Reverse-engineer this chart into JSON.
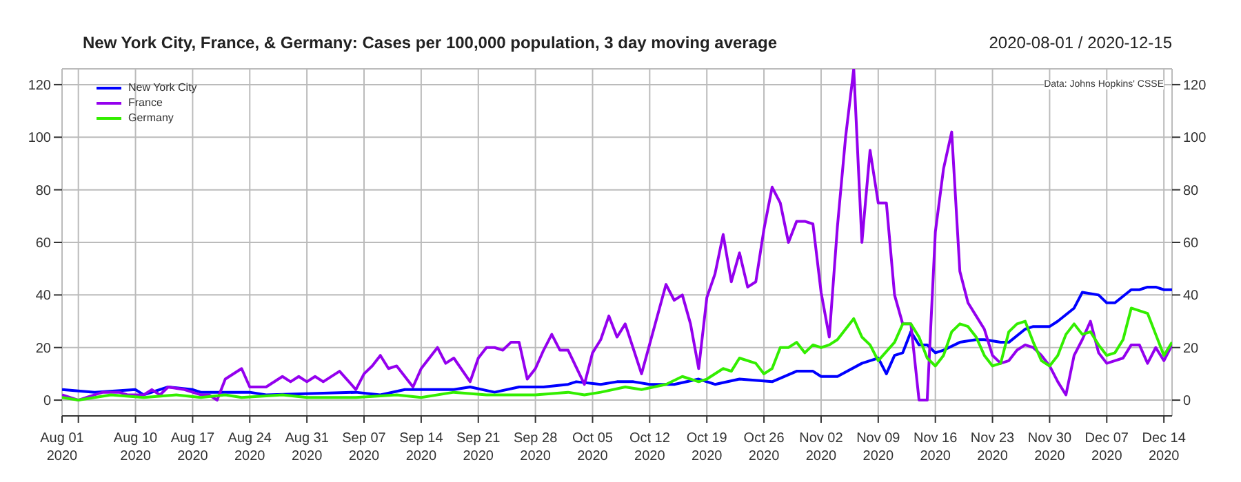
{
  "chart_data": {
    "type": "line",
    "title": "New York City, France, & Germany: Cases per 100,000 population, 3 day moving average",
    "subtitle": "2020-08-01 / 2020-12-15",
    "annotations": [
      "Data: Johns Hopkins' CSSE"
    ],
    "xlim": [
      "2020-08-01",
      "2020-12-15"
    ],
    "xticks": [
      {
        "value": "2020-08-01",
        "label": "Aug 01\n2020"
      },
      {
        "value": "2020-08-03",
        "label": null
      },
      {
        "value": "2020-08-10",
        "label": "Aug 10\n2020"
      },
      {
        "value": "2020-08-17",
        "label": "Aug 17\n2020"
      },
      {
        "value": "2020-08-24",
        "label": "Aug 24\n2020"
      },
      {
        "value": "2020-08-31",
        "label": "Aug 31\n2020"
      },
      {
        "value": "2020-09-07",
        "label": "Sep 07\n2020"
      },
      {
        "value": "2020-09-14",
        "label": "Sep 14\n2020"
      },
      {
        "value": "2020-09-21",
        "label": "Sep 21\n2020"
      },
      {
        "value": "2020-09-28",
        "label": "Sep 28\n2020"
      },
      {
        "value": "2020-10-05",
        "label": "Oct 05\n2020"
      },
      {
        "value": "2020-10-12",
        "label": "Oct 12\n2020"
      },
      {
        "value": "2020-10-19",
        "label": "Oct 19\n2020"
      },
      {
        "value": "2020-10-26",
        "label": "Oct 26\n2020"
      },
      {
        "value": "2020-11-02",
        "label": "Nov 02\n2020"
      },
      {
        "value": "2020-11-09",
        "label": "Nov 09\n2020"
      },
      {
        "value": "2020-11-16",
        "label": "Nov 16\n2020"
      },
      {
        "value": "2020-11-23",
        "label": "Nov 23\n2020"
      },
      {
        "value": "2020-11-30",
        "label": "Nov 30\n2020"
      },
      {
        "value": "2020-12-07",
        "label": "Dec 07\n2020"
      },
      {
        "value": "2020-12-14",
        "label": "Dec 14\n2020"
      }
    ],
    "ylim": [
      -6,
      126
    ],
    "yticks": [
      0,
      20,
      40,
      60,
      80,
      100,
      120
    ],
    "y2lim": [
      -6,
      126
    ],
    "y2ticks": [
      0,
      20,
      40,
      60,
      80,
      100,
      120
    ],
    "grid": true,
    "legend": "top left",
    "series": [
      {
        "name": "New York City",
        "color": "#0000ff",
        "x": [
          "2020-08-01",
          "2020-08-05",
          "2020-08-10",
          "2020-08-11",
          "2020-08-14",
          "2020-08-17",
          "2020-08-18",
          "2020-08-24",
          "2020-08-26",
          "2020-09-06",
          "2020-09-09",
          "2020-09-12",
          "2020-09-18",
          "2020-09-20",
          "2020-09-23",
          "2020-09-26",
          "2020-09-29",
          "2020-10-02",
          "2020-10-03",
          "2020-10-06",
          "2020-10-08",
          "2020-10-10",
          "2020-10-12",
          "2020-10-15",
          "2020-10-18",
          "2020-10-20",
          "2020-10-23",
          "2020-10-27",
          "2020-10-30",
          "2020-11-01",
          "2020-11-02",
          "2020-11-04",
          "2020-11-07",
          "2020-11-09",
          "2020-11-10",
          "2020-11-11",
          "2020-11-12",
          "2020-11-13",
          "2020-11-14",
          "2020-11-15",
          "2020-11-16",
          "2020-11-17",
          "2020-11-19",
          "2020-11-21",
          "2020-11-22",
          "2020-11-24",
          "2020-11-25",
          "2020-11-27",
          "2020-11-28",
          "2020-11-30",
          "2020-12-01",
          "2020-12-03",
          "2020-12-04",
          "2020-12-06",
          "2020-12-07",
          "2020-12-08",
          "2020-12-10",
          "2020-12-11",
          "2020-12-12",
          "2020-12-13",
          "2020-12-14",
          "2020-12-15"
        ],
        "values": [
          4,
          3,
          4,
          2,
          5,
          4,
          3,
          3,
          2,
          3,
          2,
          4,
          4,
          5,
          3,
          5,
          5,
          6,
          7,
          6,
          7,
          7,
          6,
          6,
          8,
          6,
          8,
          7,
          11,
          11,
          9,
          9,
          14,
          16,
          10,
          17,
          18,
          26,
          21,
          21,
          18,
          19,
          22,
          23,
          23,
          22,
          22,
          27,
          28,
          28,
          30,
          35,
          41,
          40,
          37,
          37,
          42,
          42,
          43,
          43,
          42,
          42
        ]
      },
      {
        "name": "France",
        "color": "#9400ee",
        "x": [
          "2020-08-01",
          "2020-08-03",
          "2020-08-04",
          "2020-08-05",
          "2020-08-06",
          "2020-08-08",
          "2020-08-09",
          "2020-08-11",
          "2020-08-12",
          "2020-08-13",
          "2020-08-14",
          "2020-08-16",
          "2020-08-18",
          "2020-08-19",
          "2020-08-20",
          "2020-08-21",
          "2020-08-23",
          "2020-08-24",
          "2020-08-26",
          "2020-08-28",
          "2020-08-29",
          "2020-08-30",
          "2020-08-31",
          "2020-09-01",
          "2020-09-02",
          "2020-09-04",
          "2020-09-06",
          "2020-09-07",
          "2020-09-08",
          "2020-09-09",
          "2020-09-10",
          "2020-09-11",
          "2020-09-13",
          "2020-09-14",
          "2020-09-16",
          "2020-09-17",
          "2020-09-18",
          "2020-09-20",
          "2020-09-21",
          "2020-09-22",
          "2020-09-23",
          "2020-09-24",
          "2020-09-25",
          "2020-09-26",
          "2020-09-27",
          "2020-09-28",
          "2020-09-29",
          "2020-09-30",
          "2020-10-01",
          "2020-10-02",
          "2020-10-04",
          "2020-10-05",
          "2020-10-06",
          "2020-10-07",
          "2020-10-08",
          "2020-10-09",
          "2020-10-11",
          "2020-10-14",
          "2020-10-15",
          "2020-10-16",
          "2020-10-17",
          "2020-10-18",
          "2020-10-19",
          "2020-10-20",
          "2020-10-21",
          "2020-10-22",
          "2020-10-23",
          "2020-10-24",
          "2020-10-25",
          "2020-10-26",
          "2020-10-27",
          "2020-10-28",
          "2020-10-29",
          "2020-10-30",
          "2020-10-31",
          "2020-11-01",
          "2020-11-02",
          "2020-11-03",
          "2020-11-04",
          "2020-11-05",
          "2020-11-06",
          "2020-11-07",
          "2020-11-08",
          "2020-11-09",
          "2020-11-10",
          "2020-11-11",
          "2020-11-12",
          "2020-11-13",
          "2020-11-14",
          "2020-11-15",
          "2020-11-16",
          "2020-11-17",
          "2020-11-18",
          "2020-11-19",
          "2020-11-20",
          "2020-11-21",
          "2020-11-22",
          "2020-11-23",
          "2020-11-24",
          "2020-11-25",
          "2020-11-26",
          "2020-11-27",
          "2020-11-28",
          "2020-11-29",
          "2020-11-30",
          "2020-12-01",
          "2020-12-02",
          "2020-12-03",
          "2020-12-04",
          "2020-12-05",
          "2020-12-06",
          "2020-12-07",
          "2020-12-08",
          "2020-12-09",
          "2020-12-10",
          "2020-12-11",
          "2020-12-12",
          "2020-12-13",
          "2020-12-14",
          "2020-12-15"
        ],
        "values": [
          2,
          0,
          1,
          2,
          3,
          3,
          2,
          2,
          4,
          2,
          5,
          4,
          2,
          2,
          0,
          8,
          12,
          5,
          5,
          9,
          7,
          9,
          7,
          9,
          7,
          11,
          4,
          10,
          13,
          17,
          12,
          13,
          5,
          12,
          20,
          14,
          16,
          7,
          16,
          20,
          20,
          19,
          22,
          22,
          8,
          12,
          19,
          25,
          19,
          19,
          6,
          18,
          23,
          32,
          24,
          29,
          10,
          44,
          38,
          40,
          29,
          12,
          39,
          48,
          63,
          45,
          56,
          43,
          45,
          65,
          81,
          75,
          60,
          68,
          68,
          67,
          41,
          24,
          66,
          100,
          126,
          60,
          95,
          75,
          75,
          40,
          29,
          29,
          0,
          0,
          64,
          88,
          102,
          49,
          37,
          32,
          27,
          17,
          14,
          15,
          19,
          21,
          20,
          17,
          13,
          7,
          2,
          17,
          23,
          30,
          18,
          14,
          15,
          16,
          21,
          21,
          14,
          20,
          15,
          21
        ]
      },
      {
        "name": "Germany",
        "color": "#33ee00",
        "x": [
          "2020-08-01",
          "2020-08-03",
          "2020-08-07",
          "2020-08-11",
          "2020-08-15",
          "2020-08-18",
          "2020-08-21",
          "2020-08-23",
          "2020-08-28",
          "2020-08-31",
          "2020-09-06",
          "2020-09-11",
          "2020-09-14",
          "2020-09-18",
          "2020-09-22",
          "2020-09-26",
          "2020-09-28",
          "2020-10-02",
          "2020-10-04",
          "2020-10-06",
          "2020-10-09",
          "2020-10-11",
          "2020-10-14",
          "2020-10-16",
          "2020-10-18",
          "2020-10-19",
          "2020-10-21",
          "2020-10-22",
          "2020-10-23",
          "2020-10-25",
          "2020-10-26",
          "2020-10-27",
          "2020-10-28",
          "2020-10-29",
          "2020-10-30",
          "2020-10-31",
          "2020-11-01",
          "2020-11-02",
          "2020-11-03",
          "2020-11-04",
          "2020-11-06",
          "2020-11-07",
          "2020-11-08",
          "2020-11-09",
          "2020-11-11",
          "2020-11-12",
          "2020-11-13",
          "2020-11-14",
          "2020-11-15",
          "2020-11-16",
          "2020-11-17",
          "2020-11-18",
          "2020-11-19",
          "2020-11-20",
          "2020-11-21",
          "2020-11-22",
          "2020-11-23",
          "2020-11-24",
          "2020-11-25",
          "2020-11-26",
          "2020-11-27",
          "2020-11-28",
          "2020-11-29",
          "2020-11-30",
          "2020-12-01",
          "2020-12-02",
          "2020-12-03",
          "2020-12-04",
          "2020-12-05",
          "2020-12-06",
          "2020-12-07",
          "2020-12-08",
          "2020-12-09",
          "2020-12-10",
          "2020-12-12",
          "2020-12-13",
          "2020-12-14",
          "2020-12-15"
        ],
        "values": [
          1,
          0,
          2,
          1,
          2,
          1,
          2,
          1,
          2,
          1,
          1,
          2,
          1,
          3,
          2,
          2,
          2,
          3,
          2,
          3,
          5,
          4,
          6,
          9,
          7,
          8,
          12,
          11,
          16,
          14,
          10,
          12,
          20,
          20,
          22,
          18,
          21,
          20,
          21,
          23,
          31,
          24,
          21,
          15,
          22,
          29,
          29,
          24,
          16,
          13,
          17,
          26,
          29,
          28,
          24,
          17,
          13,
          14,
          26,
          29,
          30,
          22,
          15,
          13,
          17,
          25,
          29,
          25,
          26,
          21,
          17,
          18,
          23,
          35,
          33,
          25,
          17,
          22
        ]
      }
    ]
  }
}
